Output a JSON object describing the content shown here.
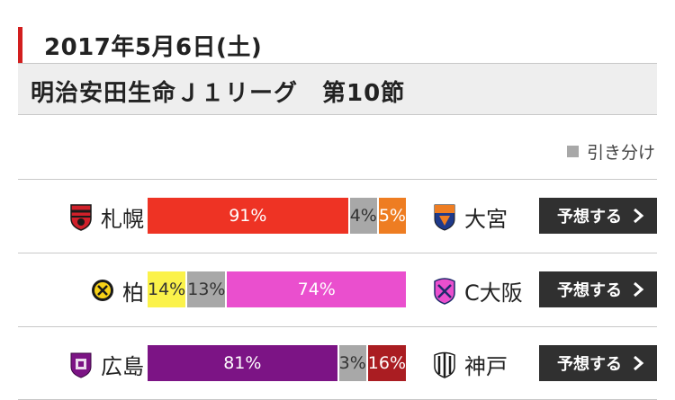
{
  "header": {
    "date": "2017年5月6日(土)",
    "league": "明治安田生命Ｊ１リーグ　第10節"
  },
  "legend": {
    "draw_label": "引き分け",
    "draw_color": "#a8a8a8"
  },
  "matches": [
    {
      "home": {
        "name": "札幌",
        "emblem": "sapporo-emblem-icon"
      },
      "away": {
        "name": "大宮",
        "emblem": "omiya-emblem-icon"
      },
      "home_pct": 91,
      "draw_pct": 4,
      "away_pct": 5,
      "home_label": "91%",
      "draw_label": "4%",
      "away_label": "5%",
      "home_color": "#ee3324",
      "away_color": "#ee7d22",
      "button": "予想する"
    },
    {
      "home": {
        "name": "柏",
        "emblem": "kashiwa-emblem-icon"
      },
      "away": {
        "name": "C大阪",
        "emblem": "cerezo-osaka-emblem-icon"
      },
      "home_pct": 14,
      "draw_pct": 13,
      "away_pct": 74,
      "home_label": "14%",
      "draw_label": "13%",
      "away_label": "74%",
      "home_color": "#fbf24a",
      "away_color": "#ea4fce",
      "button": "予想する"
    },
    {
      "home": {
        "name": "広島",
        "emblem": "hiroshima-emblem-icon"
      },
      "away": {
        "name": "神戸",
        "emblem": "kobe-emblem-icon"
      },
      "home_pct": 81,
      "draw_pct": 3,
      "away_pct": 16,
      "home_label": "81%",
      "draw_label": "3%",
      "away_label": "16%",
      "home_color": "#7c1485",
      "away_color": "#aa1d22",
      "button": "予想する"
    }
  ]
}
